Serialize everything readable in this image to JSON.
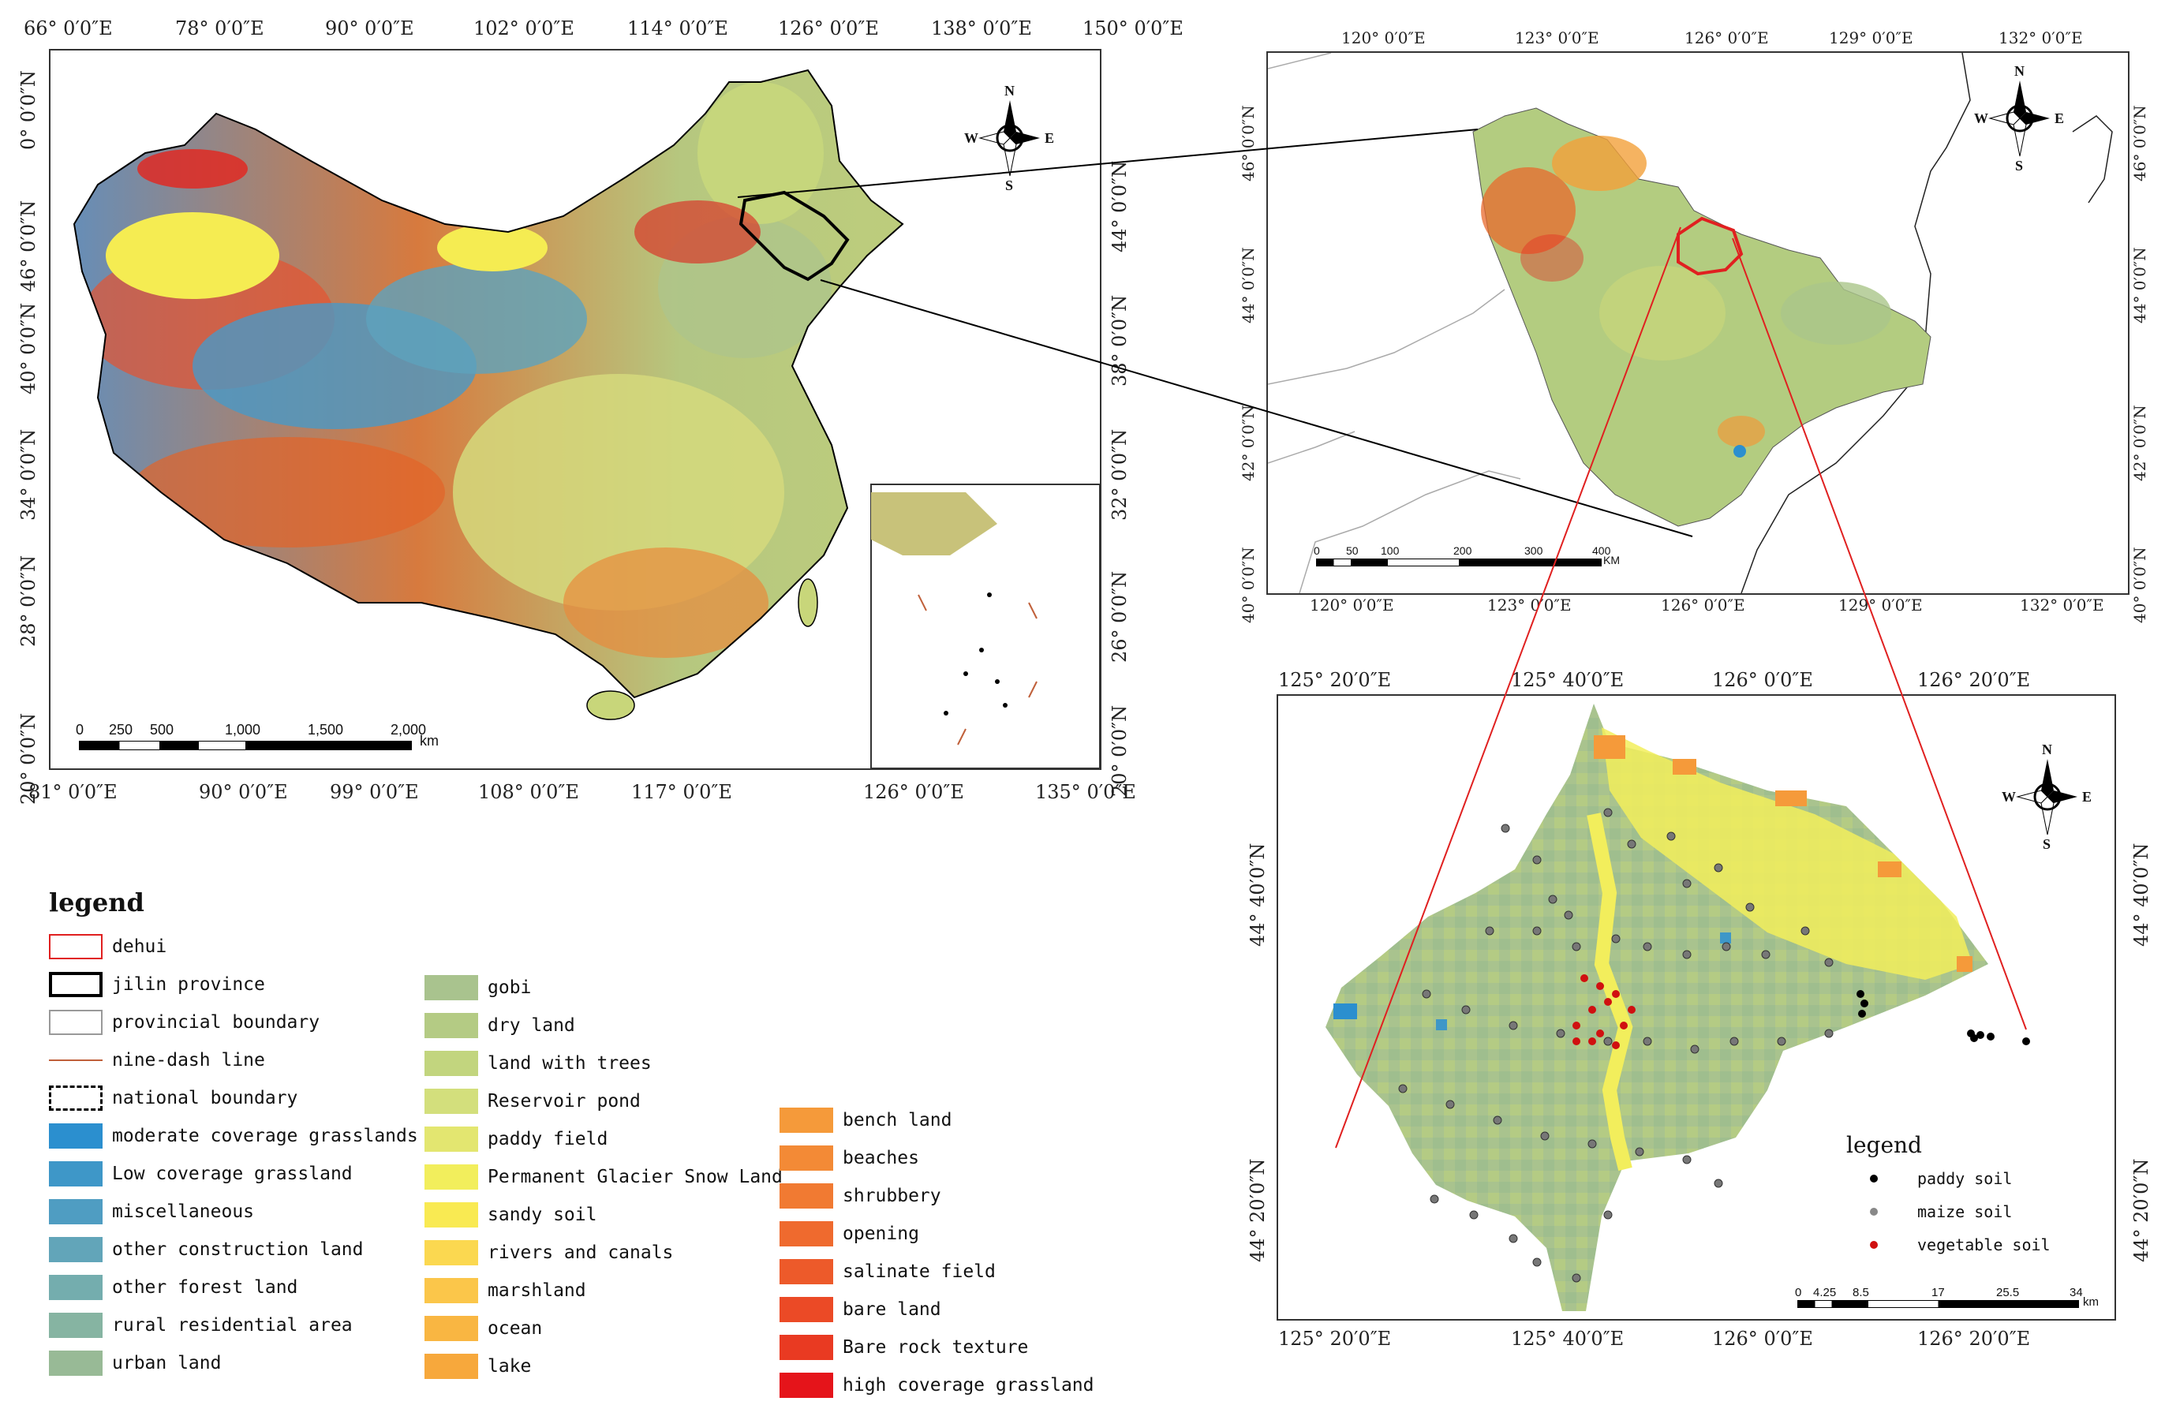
{
  "map_china": {
    "top_ticks": [
      "66° 0′0″E",
      "78° 0′0″E",
      "90° 0′0″E",
      "102° 0′0″E",
      "114° 0′0″E",
      "126° 0′0″E",
      "138° 0′0″E",
      "150° 0′0″E"
    ],
    "bottom_ticks": [
      "81° 0′0″E",
      "90° 0′0″E",
      "99° 0′0″E",
      "108° 0′0″E",
      "117° 0′0″E",
      "126° 0′0″E",
      "135° 0′0″E"
    ],
    "left_ticks": [
      "0° 0′0″N",
      "46° 0′0″N",
      "40° 0′0″N",
      "34° 0′0″N",
      "28° 0′0″N",
      "20° 0′0″N"
    ],
    "right_ticks": [
      "44° 0′0″N",
      "38° 0′0″N",
      "32° 0′0″N",
      "26° 0′0″N",
      "20° 0′0″N"
    ],
    "scale_labels": [
      "0",
      "250",
      "500",
      "1,000",
      "1,500",
      "2,000"
    ],
    "scale_unit": "km"
  },
  "map_jilin": {
    "top_ticks": [
      "120° 0′0″E",
      "123° 0′0″E",
      "126° 0′0″E",
      "129° 0′0″E",
      "132° 0′0″E"
    ],
    "bottom_ticks": [
      "120° 0′0″E",
      "123° 0′0″E",
      "126° 0′0″E",
      "129° 0′0″E",
      "132° 0′0″E"
    ],
    "left_ticks": [
      "46° 0′0″N",
      "44° 0′0″N",
      "42° 0′0″N",
      "40° 0′0″N"
    ],
    "right_ticks": [
      "46° 0′0″N",
      "44° 0′0″N",
      "42° 0′0″N",
      "40° 0′0″N"
    ],
    "scale_labels": [
      "0",
      "50",
      "100",
      "200",
      "300",
      "400"
    ],
    "scale_unit": "KM"
  },
  "map_dehui": {
    "top_ticks": [
      "125° 20′0″E",
      "125° 40′0″E",
      "126° 0′0″E",
      "126° 20′0″E"
    ],
    "bottom_ticks": [
      "125° 20′0″E",
      "125° 40′0″E",
      "126° 0′0″E",
      "126° 20′0″E"
    ],
    "left_ticks": [
      "44° 40′0″N",
      "44° 20′0″N"
    ],
    "right_ticks": [
      "44° 40′0″N",
      "44° 20′0″N"
    ],
    "scale_labels": [
      "0",
      "4.25",
      "8.5",
      "17",
      "25.5",
      "34"
    ],
    "scale_unit": "km",
    "soil_legend": {
      "title": "legend",
      "items": [
        {
          "label": "paddy soil",
          "color": "#000000"
        },
        {
          "label": "maize soil",
          "color": "#888888"
        },
        {
          "label": "vegetable soil",
          "color": "#d01010"
        }
      ]
    }
  },
  "compass": {
    "n": "N",
    "s": "S",
    "e": "E",
    "w": "W"
  },
  "legend": {
    "title": "legend",
    "col1": [
      {
        "label": "dehui",
        "swatch": "outline",
        "color": "#e02020"
      },
      {
        "label": "jilin province",
        "swatch": "thick-outline",
        "color": "#000000"
      },
      {
        "label": "provincial boundary",
        "swatch": "outline",
        "color": "#999999"
      },
      {
        "label": "nine-dash line",
        "swatch": "line",
        "color": "#c0603a"
      },
      {
        "label": "national boundary",
        "swatch": "dashed-outline",
        "color": "#000000"
      },
      {
        "label": "moderate coverage grasslands",
        "swatch": "fill",
        "color": "#2b8fcf"
      },
      {
        "label": "Low coverage grassland",
        "swatch": "fill",
        "color": "#3e97c8"
      },
      {
        "label": "miscellaneous",
        "swatch": "fill",
        "color": "#4f9dc2"
      },
      {
        "label": "other construction land",
        "swatch": "fill",
        "color": "#62a5b9"
      },
      {
        "label": "other forest land",
        "swatch": "fill",
        "color": "#74adae"
      },
      {
        "label": "rural residential area",
        "swatch": "fill",
        "color": "#86b4a2"
      },
      {
        "label": "urban land",
        "swatch": "fill",
        "color": "#98ba96"
      }
    ],
    "col2": [
      {
        "label": "gobi",
        "color": "#a9c38e"
      },
      {
        "label": "dry land",
        "color": "#b4cb84"
      },
      {
        "label": "land with trees",
        "color": "#c2d57e"
      },
      {
        "label": "Reservoir pond",
        "color": "#d3df7c"
      },
      {
        "label": "paddy field",
        "color": "#e3e670"
      },
      {
        "label": "Permanent Glacier Snow Land",
        "color": "#f2ee5c"
      },
      {
        "label": "sandy soil",
        "color": "#f9ea52"
      },
      {
        "label": "rivers and canals",
        "color": "#fbd850"
      },
      {
        "label": "marshland",
        "color": "#fbc64a"
      },
      {
        "label": "ocean",
        "color": "#f9b642"
      },
      {
        "label": "lake",
        "color": "#f7a83c"
      }
    ],
    "col3": [
      {
        "label": "bench land",
        "color": "#f59a3a"
      },
      {
        "label": "beaches",
        "color": "#f38a36"
      },
      {
        "label": "shrubbery",
        "color": "#f17a32"
      },
      {
        "label": "opening",
        "color": "#ef6a2e"
      },
      {
        "label": "salinate field",
        "color": "#ed5a2a"
      },
      {
        "label": "bare land",
        "color": "#eb4a26"
      },
      {
        "label": "Bare rock texture",
        "color": "#e93a22"
      },
      {
        "label": "high coverage grassland",
        "color": "#e5141a"
      }
    ]
  }
}
